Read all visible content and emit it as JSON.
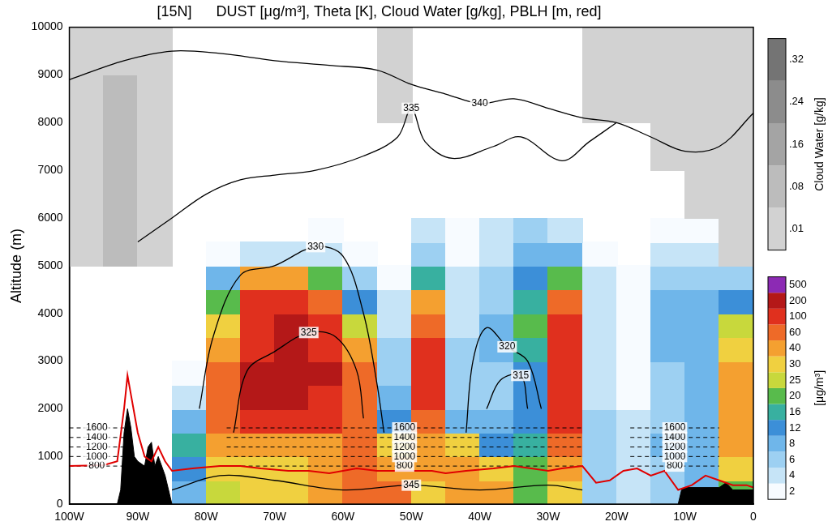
{
  "chart_data": {
    "type": "contour_section",
    "title": "[15N]      DUST [μg/m³], Theta [K], Cloud Water [g/kg], PBLH [m, red]",
    "y_label": "Altitude (m)",
    "xlim": [
      -100,
      0
    ],
    "xticks": [
      {
        "value": -100,
        "label": "100W"
      },
      {
        "value": -90,
        "label": "90W"
      },
      {
        "value": -80,
        "label": "80W"
      },
      {
        "value": -70,
        "label": "70W"
      },
      {
        "value": -60,
        "label": "60W"
      },
      {
        "value": -50,
        "label": "50W"
      },
      {
        "value": -40,
        "label": "40W"
      },
      {
        "value": -30,
        "label": "30W"
      },
      {
        "value": -20,
        "label": "20W"
      },
      {
        "value": -10,
        "label": "10W"
      },
      0
    ],
    "ylim": [
      0,
      10000
    ],
    "yticks": [
      0,
      1000,
      2000,
      3000,
      4000,
      5000,
      6000,
      7000,
      8000,
      9000,
      10000
    ],
    "grid": false,
    "dust": {
      "label": "[μg/m³]",
      "x": [
        -97.5,
        -92.5,
        -87.5,
        -82.5,
        -77.5,
        -72.5,
        -67.5,
        -62.5,
        -57.5,
        -52.5,
        -47.5,
        -42.5,
        -37.5,
        -32.5,
        -27.5,
        -22.5,
        -17.5,
        -12.5,
        -7.5,
        -2.5
      ],
      "z": [
        250,
        750,
        1250,
        1750,
        2250,
        2750,
        3250,
        3750,
        4250,
        4750,
        5250,
        5750
      ],
      "values": [
        [
          0,
          0,
          0,
          8,
          25,
          30,
          30,
          40,
          60,
          60,
          30,
          40,
          40,
          20,
          30,
          6,
          4,
          6,
          8,
          20
        ],
        [
          0,
          0,
          0,
          12,
          30,
          30,
          35,
          40,
          60,
          50,
          40,
          40,
          30,
          20,
          40,
          6,
          4,
          6,
          10,
          30
        ],
        [
          0,
          0,
          0,
          16,
          40,
          40,
          40,
          40,
          60,
          30,
          40,
          30,
          12,
          16,
          60,
          6,
          4,
          8,
          10,
          40
        ],
        [
          0,
          0,
          0,
          8,
          60,
          100,
          100,
          100,
          60,
          12,
          60,
          8,
          8,
          12,
          100,
          6,
          4,
          6,
          8,
          40
        ],
        [
          0,
          0,
          0,
          4,
          60,
          200,
          200,
          150,
          60,
          8,
          100,
          6,
          6,
          12,
          150,
          4,
          2,
          6,
          8,
          40
        ],
        [
          0,
          0,
          0,
          2,
          60,
          200,
          200,
          200,
          60,
          6,
          100,
          6,
          6,
          12,
          150,
          4,
          2,
          6,
          8,
          40
        ],
        [
          0,
          0,
          0,
          0,
          40,
          150,
          200,
          150,
          40,
          6,
          100,
          6,
          8,
          16,
          100,
          4,
          2,
          8,
          10,
          30
        ],
        [
          0,
          0,
          0,
          0,
          30,
          150,
          200,
          100,
          25,
          4,
          60,
          4,
          8,
          20,
          100,
          4,
          2,
          8,
          10,
          25
        ],
        [
          0,
          0,
          0,
          0,
          20,
          100,
          150,
          60,
          12,
          4,
          40,
          4,
          6,
          16,
          60,
          4,
          2,
          8,
          8,
          12
        ],
        [
          0,
          0,
          0,
          0,
          8,
          40,
          40,
          20,
          6,
          2,
          16,
          4,
          6,
          12,
          20,
          4,
          2,
          6,
          6,
          6
        ],
        [
          0,
          0,
          0,
          0,
          2,
          4,
          4,
          4,
          2,
          0,
          6,
          2,
          4,
          8,
          8,
          2,
          0,
          4,
          4,
          4
        ],
        [
          0,
          0,
          0,
          0,
          0,
          0,
          0,
          2,
          0,
          0,
          4,
          2,
          4,
          6,
          4,
          0,
          0,
          2,
          2,
          2
        ]
      ],
      "colorbar": {
        "ticks": [
          2,
          4,
          6,
          8,
          12,
          16,
          20,
          25,
          30,
          40,
          60,
          100,
          200,
          500
        ],
        "colors": [
          "#f7fbff",
          "#c6e4f7",
          "#9dd0f2",
          "#6fb6ea",
          "#3c8fd8",
          "#38b0a0",
          "#58bb4c",
          "#c8d83c",
          "#f0d040",
          "#f4a030",
          "#ee6a28",
          "#e0301e",
          "#b41818",
          "#8c2ab4"
        ]
      }
    },
    "cloud_water": {
      "label": "Cloud Water [g/kg]",
      "x": [
        -97.5,
        -92.5,
        -87.5,
        -82.5,
        -77.5,
        -72.5,
        -67.5,
        -62.5,
        -57.5,
        -52.5,
        -47.5,
        -42.5,
        -37.5,
        -32.5,
        -27.5,
        -22.5,
        -17.5,
        -12.5,
        -7.5,
        -2.5
      ],
      "z": [
        5500,
        6500,
        7500,
        8500,
        9500
      ],
      "values": [
        [
          0.01,
          0.08,
          0.02,
          0,
          0,
          0,
          0,
          0,
          0,
          0,
          0,
          0,
          0,
          0,
          0,
          0,
          0,
          0,
          0,
          0.02
        ],
        [
          0.02,
          0.08,
          0.02,
          0,
          0,
          0,
          0,
          0,
          0,
          0,
          0,
          0,
          0,
          0,
          0,
          0,
          0,
          0,
          0.01,
          0.02
        ],
        [
          0.02,
          0.08,
          0.01,
          0,
          0,
          0,
          0,
          0,
          0,
          0,
          0,
          0,
          0,
          0,
          0,
          0,
          0,
          0.01,
          0.02,
          0.02
        ],
        [
          0.02,
          0.08,
          0.01,
          0,
          0,
          0,
          0,
          0,
          0,
          0.02,
          0,
          0,
          0,
          0,
          0,
          0.01,
          0.02,
          0.02,
          0.02,
          0.02
        ],
        [
          0.02,
          0.02,
          0.01,
          0,
          0,
          0,
          0,
          0,
          0,
          0.02,
          0,
          0,
          0,
          0,
          0,
          0.02,
          0.02,
          0.02,
          0.02,
          0.02
        ]
      ],
      "colorbar": {
        "ticks": [
          {
            "value": 0.01,
            "label": ".01"
          },
          {
            "value": 0.08,
            "label": ".08"
          },
          {
            "value": 0.16,
            "label": ".16"
          },
          {
            "value": 0.24,
            "label": ".24"
          },
          {
            "value": 0.32,
            "label": ".32"
          }
        ],
        "colors": [
          "#d2d2d2",
          "#bcbcbc",
          "#a4a4a4",
          "#8c8c8c",
          "#747474"
        ]
      }
    },
    "theta": [
      {
        "name": "340",
        "color": "#000000",
        "x": [
          -100,
          -92,
          -85,
          -78,
          -70,
          -62,
          -55,
          -50,
          -45,
          -40,
          -35,
          -30,
          -25,
          -20,
          -15,
          -10,
          -5,
          0
        ],
        "values": [
          8900,
          9300,
          9500,
          9450,
          9300,
          9200,
          9100,
          8800,
          8600,
          8400,
          8500,
          8300,
          8100,
          8000,
          7700,
          7400,
          7500,
          8200
        ]
      },
      {
        "name": "335",
        "color": "#000000",
        "x": [
          -90,
          -85,
          -80,
          -75,
          -70,
          -64,
          -57,
          -52,
          -50,
          -48,
          -44,
          -38,
          -34,
          -28,
          -24,
          -20
        ],
        "values": [
          5500,
          6000,
          6500,
          6800,
          6900,
          7000,
          7300,
          7700,
          8300,
          7600,
          7250,
          7500,
          7700,
          7200,
          7600,
          8000
        ]
      },
      {
        "name": "330",
        "color": "#000000",
        "x": [
          -81,
          -79,
          -75,
          -70,
          -64,
          -60,
          -57,
          -55,
          -54
        ],
        "values": [
          2000,
          3500,
          4800,
          5000,
          5400,
          5200,
          4000,
          2500,
          1500
        ]
      },
      {
        "name": "325",
        "color": "#000000",
        "x": [
          -76,
          -74,
          -70,
          -65,
          -61,
          -58,
          -57
        ],
        "values": [
          1500,
          2800,
          3200,
          3600,
          3500,
          2800,
          1800
        ]
      },
      {
        "name": "320",
        "color": "#000000",
        "x": [
          -42,
          -41,
          -39,
          -36,
          -33,
          -31
        ],
        "values": [
          1500,
          3000,
          3700,
          3300,
          3000,
          2000
        ]
      },
      {
        "name": "315",
        "color": "#000000",
        "x": [
          -39,
          -37,
          -34,
          -33
        ],
        "values": [
          2000,
          2600,
          2700,
          2000
        ]
      },
      {
        "name": "345",
        "color": "#000000",
        "x": [
          -85,
          -78,
          -70,
          -60,
          -50,
          -40,
          -30,
          -25
        ],
        "values": [
          300,
          600,
          500,
          300,
          400,
          300,
          400,
          300
        ]
      }
    ],
    "pblh": {
      "color": "#e00000",
      "x": [
        -100,
        -95,
        -93,
        -92,
        -91.5,
        -91,
        -90,
        -89,
        -88,
        -87,
        -86,
        -85,
        -82,
        -78,
        -75,
        -72,
        -68,
        -65,
        -62,
        -58,
        -55,
        -50,
        -47,
        -45,
        -42,
        -38,
        -35,
        -30,
        -28,
        -25,
        -23,
        -21,
        -19,
        -17,
        -15,
        -13,
        -11,
        -9,
        -7,
        -5,
        -3,
        -1,
        0
      ],
      "values": [
        800,
        820,
        900,
        2000,
        2700,
        2300,
        1500,
        1000,
        900,
        1200,
        900,
        700,
        750,
        800,
        800,
        750,
        700,
        700,
        650,
        750,
        700,
        700,
        700,
        650,
        700,
        750,
        800,
        700,
        750,
        800,
        450,
        500,
        700,
        750,
        600,
        700,
        300,
        400,
        600,
        500,
        400,
        400,
        350
      ]
    },
    "terrain": {
      "color": "#000000",
      "x": [
        -100,
        -93,
        -92.5,
        -92,
        -91.5,
        -91,
        -90.5,
        -90,
        -89,
        -88.5,
        -88,
        -87.5,
        -87,
        -86,
        -85,
        -84,
        -11,
        -10.5,
        -10,
        -5,
        -4,
        -3,
        0
      ],
      "values": [
        0,
        0,
        300,
        1500,
        2000,
        1600,
        1000,
        900,
        800,
        1200,
        1300,
        800,
        1000,
        600,
        0,
        0,
        0,
        300,
        350,
        350,
        450,
        300,
        300
      ]
    },
    "pbl_levels": {
      "color": "#000000",
      "line_style": "dashed",
      "values": [
        800,
        1000,
        1200,
        1400,
        1600
      ],
      "segments": [
        [
          -100,
          -92
        ],
        [
          -77,
          -25
        ],
        [
          -18,
          -5
        ]
      ]
    }
  }
}
